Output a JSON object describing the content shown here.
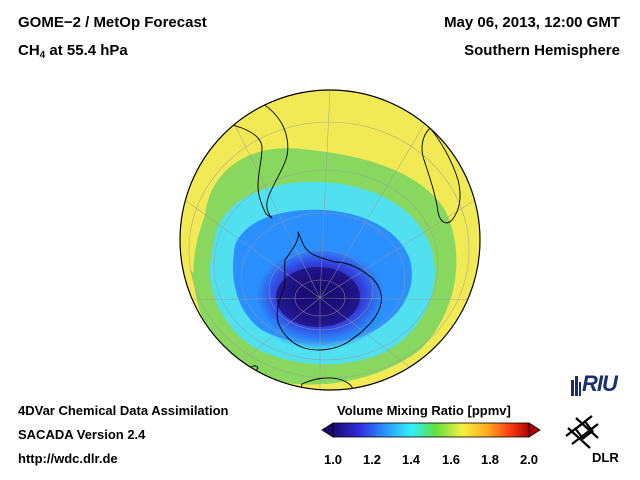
{
  "header": {
    "title_line1": "GOME−2 / MetOp Forecast",
    "species": "CH",
    "species_sub": "4",
    "species_rest": " at 55.4 hPa",
    "datetime": "May 06, 2013, 12:00 GMT",
    "region": "Southern Hemisphere"
  },
  "footer": {
    "line1": "4DVar Chemical Data Assimilation",
    "line2": "SACADA Version 2.4",
    "line3": "http://wdc.dlr.de"
  },
  "colorbar": {
    "title": "Volume Mixing Ratio [ppmv]",
    "ticks": [
      "1.0",
      "1.2",
      "1.4",
      "1.6",
      "1.8",
      "2.0"
    ],
    "min": 1.0,
    "max": 2.0,
    "colors": [
      "#1a0a70",
      "#3030e0",
      "#2aa0ff",
      "#30f0ff",
      "#60e040",
      "#f5f040",
      "#ffb020",
      "#ff4010",
      "#b00000"
    ]
  },
  "map": {
    "projection": "orthographic-south-polar",
    "field_colors": {
      "background": "#f2ea55",
      "green": "#88d860",
      "cyan": "#50e0f0",
      "blue": "#2a8fff",
      "vortex_edge": "#3030d0",
      "vortex_core": "#1a0a70"
    }
  },
  "logos": {
    "riu": "RIU",
    "dlr": "DLR"
  }
}
